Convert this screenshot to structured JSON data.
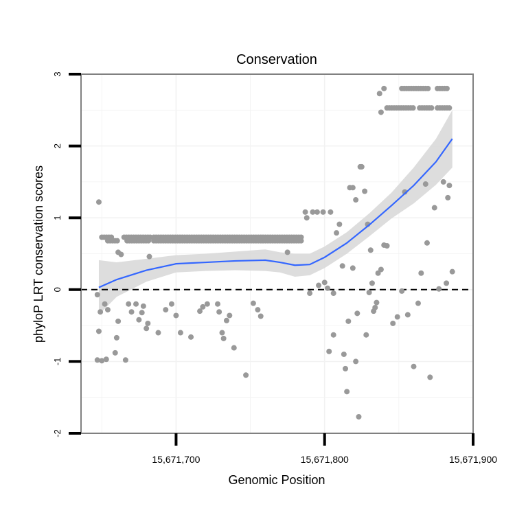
{
  "chart_data": {
    "type": "scatter",
    "title": "Conservation",
    "xlabel": "Genomic Position",
    "ylabel": "phyloP LRT conservation scores",
    "xlim": [
      15671636,
      15671900
    ],
    "ylim": [
      -2,
      3
    ],
    "x_ticks": [
      {
        "value": 15671700,
        "label": "15,671,700"
      },
      {
        "value": 15671800,
        "label": "15,671,800"
      },
      {
        "value": 15671900,
        "label": "15,671,900"
      }
    ],
    "y_ticks": [
      {
        "value": -2,
        "label": "-2"
      },
      {
        "value": -1,
        "label": "-1"
      },
      {
        "value": 0,
        "label": "0"
      },
      {
        "value": 1,
        "label": "1"
      },
      {
        "value": 2,
        "label": "2"
      },
      {
        "value": 3,
        "label": "3"
      }
    ],
    "reference_line": {
      "y": 0,
      "style": "dashed"
    },
    "colors": {
      "points": "#999999",
      "smooth": "#3366ff",
      "ribbon": "#d9d9d9",
      "grid": "#f2f2f2",
      "border": "#808080"
    },
    "points": [
      [
        15671648,
        1.22
      ],
      [
        15671647,
        -0.07
      ],
      [
        15671648,
        -0.58
      ],
      [
        15671649,
        -0.31
      ],
      [
        15671647,
        -0.98
      ],
      [
        15671650,
        -0.99
      ],
      [
        15671652,
        -0.2
      ],
      [
        15671653,
        -0.97
      ],
      [
        15671654,
        -0.28
      ],
      [
        15671659,
        -0.88
      ],
      [
        15671660,
        -0.67
      ],
      [
        15671661,
        -0.44
      ],
      [
        15671661,
        0.52
      ],
      [
        15671663,
        0.49
      ],
      [
        15671666,
        -0.98
      ],
      [
        15671668,
        -0.2
      ],
      [
        15671670,
        -0.31
      ],
      [
        15671673,
        -0.2
      ],
      [
        15671675,
        -0.42
      ],
      [
        15671677,
        -0.32
      ],
      [
        15671678,
        -0.23
      ],
      [
        15671680,
        -0.54
      ],
      [
        15671681,
        -0.47
      ],
      [
        15671682,
        0.46
      ],
      [
        15671688,
        -0.6
      ],
      [
        15671693,
        -0.28
      ],
      [
        15671697,
        -0.2
      ],
      [
        15671700,
        -0.36
      ],
      [
        15671703,
        -0.6
      ],
      [
        15671710,
        -0.66
      ],
      [
        15671716,
        -0.3
      ],
      [
        15671718,
        -0.24
      ],
      [
        15671721,
        -0.2
      ],
      [
        15671728,
        -0.2
      ],
      [
        15671729,
        -0.31
      ],
      [
        15671731,
        -0.6
      ],
      [
        15671732,
        -0.68
      ],
      [
        15671734,
        -0.43
      ],
      [
        15671736,
        -0.36
      ],
      [
        15671739,
        -0.81
      ],
      [
        15671747,
        -1.19
      ],
      [
        15671752,
        -0.19
      ],
      [
        15671755,
        -0.28
      ],
      [
        15671757,
        -0.37
      ],
      [
        15671775,
        0.52
      ],
      [
        15671787,
        1.08
      ],
      [
        15671788,
        1.0
      ],
      [
        15671790,
        -0.05
      ],
      [
        15671792,
        1.08
      ],
      [
        15671795,
        1.08
      ],
      [
        15671796,
        0.06
      ],
      [
        15671799,
        1.08
      ],
      [
        15671800,
        0.1
      ],
      [
        15671802,
        0.02
      ],
      [
        15671804,
        1.08
      ],
      [
        15671806,
        -0.05
      ],
      [
        15671803,
        -0.86
      ],
      [
        15671806,
        -0.63
      ],
      [
        15671808,
        0.79
      ],
      [
        15671810,
        0.91
      ],
      [
        15671812,
        0.33
      ],
      [
        15671813,
        -0.9
      ],
      [
        15671814,
        -1.1
      ],
      [
        15671815,
        -1.42
      ],
      [
        15671816,
        -0.44
      ],
      [
        15671817,
        1.42
      ],
      [
        15671819,
        1.42
      ],
      [
        15671819,
        0.3
      ],
      [
        15671821,
        1.25
      ],
      [
        15671821,
        -1.0
      ],
      [
        15671822,
        -0.33
      ],
      [
        15671823,
        -1.77
      ],
      [
        15671824,
        1.71
      ],
      [
        15671825,
        1.71
      ],
      [
        15671827,
        1.37
      ],
      [
        15671828,
        -0.63
      ],
      [
        15671829,
        0.91
      ],
      [
        15671830,
        -0.04
      ],
      [
        15671831,
        0.55
      ],
      [
        15671832,
        0.09
      ],
      [
        15671833,
        -0.3
      ],
      [
        15671834,
        -0.25
      ],
      [
        15671835,
        -0.18
      ],
      [
        15671836,
        0.23
      ],
      [
        15671837,
        2.73
      ],
      [
        15671838,
        2.47
      ],
      [
        15671838,
        0.28
      ],
      [
        15671840,
        2.8
      ],
      [
        15671840,
        0.62
      ],
      [
        15671842,
        0.61
      ],
      [
        15671846,
        -0.47
      ],
      [
        15671849,
        -0.38
      ],
      [
        15671852,
        -0.02
      ],
      [
        15671854,
        1.36
      ],
      [
        15671856,
        -0.35
      ],
      [
        15671860,
        -1.07
      ],
      [
        15671863,
        -0.19
      ],
      [
        15671865,
        0.23
      ],
      [
        15671868,
        1.47
      ],
      [
        15671869,
        0.65
      ],
      [
        15671871,
        -1.22
      ],
      [
        15671874,
        1.14
      ],
      [
        15671877,
        0.01
      ],
      [
        15671880,
        1.5
      ],
      [
        15671882,
        0.09
      ],
      [
        15671883,
        1.28
      ],
      [
        15671884,
        1.45
      ],
      [
        15671886,
        0.25
      ]
    ],
    "point_rows": [
      {
        "y": 0.73,
        "x_from": 15671650,
        "x_to": 15671657,
        "step": 1.6
      },
      {
        "y": 0.68,
        "x_from": 15671654,
        "x_to": 15671661,
        "step": 1.6
      },
      {
        "y": 0.73,
        "x_from": 15671665,
        "x_to": 15671683,
        "step": 1.6
      },
      {
        "y": 0.68,
        "x_from": 15671667,
        "x_to": 15671682,
        "step": 1.6
      },
      {
        "y": 0.73,
        "x_from": 15671685,
        "x_to": 15671785,
        "step": 1.6
      },
      {
        "y": 0.68,
        "x_from": 15671685,
        "x_to": 15671785,
        "step": 1.6
      },
      {
        "y": 2.53,
        "x_from": 15671842,
        "x_to": 15671861,
        "step": 1.6
      },
      {
        "y": 2.8,
        "x_from": 15671852,
        "x_to": 15671871,
        "step": 1.6
      },
      {
        "y": 2.53,
        "x_from": 15671864,
        "x_to": 15671873,
        "step": 1.6
      },
      {
        "y": 2.8,
        "x_from": 15671876,
        "x_to": 15671883,
        "step": 1.6
      },
      {
        "y": 2.53,
        "x_from": 15671876,
        "x_to": 15671884,
        "step": 1.6
      }
    ],
    "smooth": [
      [
        15671648,
        0.03
      ],
      [
        15671660,
        0.14
      ],
      [
        15671680,
        0.27
      ],
      [
        15671700,
        0.36
      ],
      [
        15671720,
        0.38
      ],
      [
        15671740,
        0.4
      ],
      [
        15671760,
        0.41
      ],
      [
        15671770,
        0.38
      ],
      [
        15671780,
        0.34
      ],
      [
        15671790,
        0.35
      ],
      [
        15671800,
        0.45
      ],
      [
        15671815,
        0.65
      ],
      [
        15671830,
        0.9
      ],
      [
        15671845,
        1.17
      ],
      [
        15671860,
        1.45
      ],
      [
        15671875,
        1.78
      ],
      [
        15671886,
        2.1
      ]
    ],
    "ribbon_upper": [
      [
        15671648,
        0.41
      ],
      [
        15671660,
        0.38
      ],
      [
        15671680,
        0.43
      ],
      [
        15671700,
        0.48
      ],
      [
        15671720,
        0.5
      ],
      [
        15671740,
        0.53
      ],
      [
        15671760,
        0.56
      ],
      [
        15671770,
        0.52
      ],
      [
        15671780,
        0.5
      ],
      [
        15671790,
        0.5
      ],
      [
        15671800,
        0.6
      ],
      [
        15671815,
        0.8
      ],
      [
        15671830,
        1.06
      ],
      [
        15671845,
        1.35
      ],
      [
        15671860,
        1.7
      ],
      [
        15671875,
        2.1
      ],
      [
        15671886,
        2.5
      ]
    ],
    "ribbon_lower": [
      [
        15671648,
        -0.35
      ],
      [
        15671660,
        -0.1
      ],
      [
        15671680,
        0.11
      ],
      [
        15671700,
        0.24
      ],
      [
        15671720,
        0.26
      ],
      [
        15671740,
        0.27
      ],
      [
        15671760,
        0.26
      ],
      [
        15671770,
        0.24
      ],
      [
        15671780,
        0.18
      ],
      [
        15671790,
        0.2
      ],
      [
        15671800,
        0.3
      ],
      [
        15671815,
        0.5
      ],
      [
        15671830,
        0.74
      ],
      [
        15671845,
        0.99
      ],
      [
        15671860,
        1.2
      ],
      [
        15671875,
        1.46
      ],
      [
        15671886,
        1.7
      ]
    ]
  }
}
